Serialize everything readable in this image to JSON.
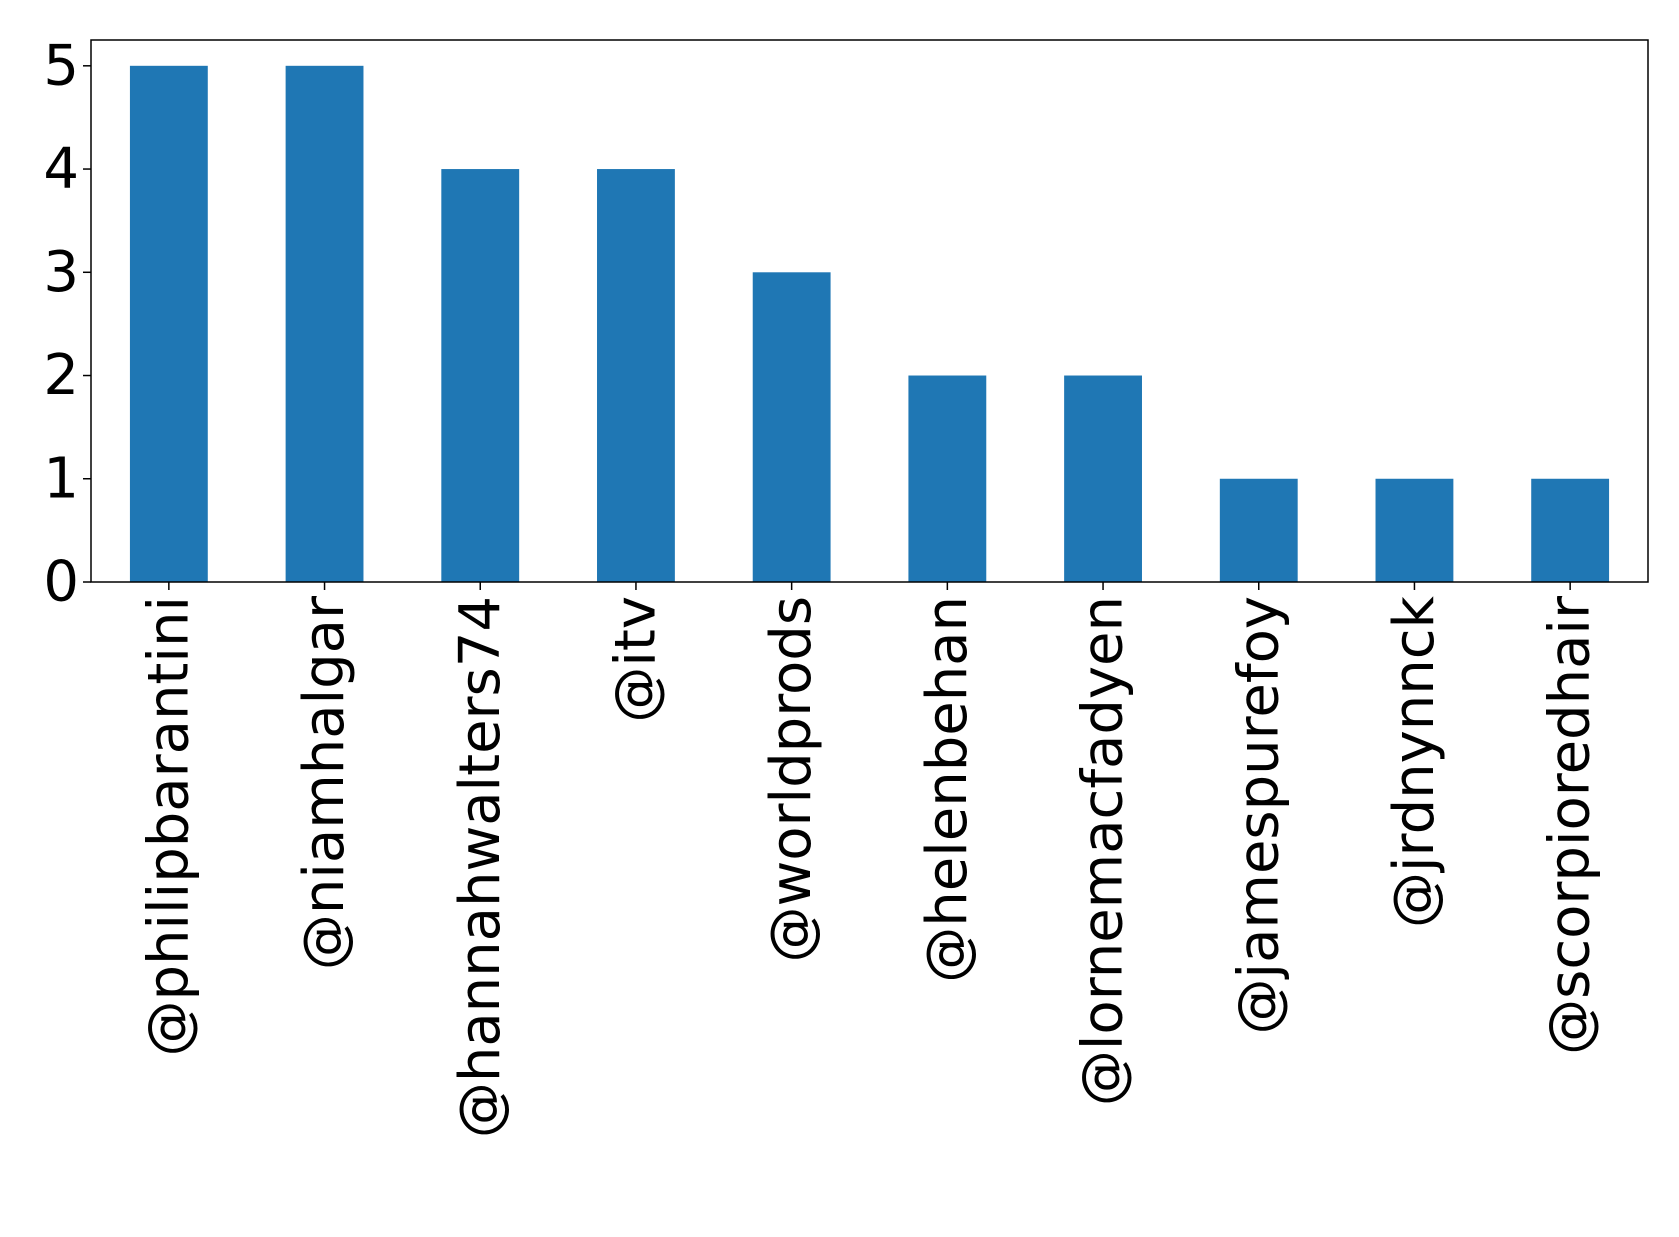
{
  "chart_data": {
    "type": "bar",
    "title": "",
    "xlabel": "",
    "ylabel": "",
    "categories": [
      "@philipbarantini",
      "@niamhalgar",
      "@hannahwalters74",
      "@itv",
      "@worldprods",
      "@helenbehan",
      "@lornemacfadyen",
      "@jamespurefoy",
      "@jrdnynnck",
      "@scorpioredhair"
    ],
    "values": [
      5,
      5,
      4,
      4,
      3,
      2,
      2,
      1,
      1,
      1
    ],
    "ylim": [
      0,
      5.25
    ],
    "yticks": [
      0,
      1,
      2,
      3,
      4,
      5
    ],
    "grid": false,
    "legend": "none",
    "bar_color": "#1f77b4",
    "x_tick_rotation": "vertical"
  }
}
